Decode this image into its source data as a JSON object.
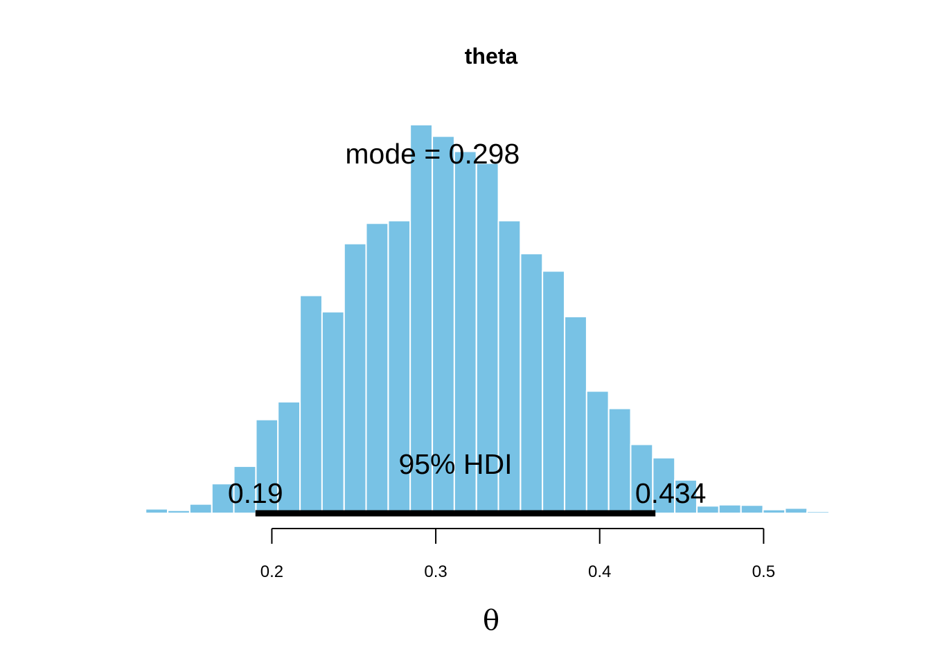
{
  "chart_data": {
    "type": "bar",
    "title": "theta",
    "xlabel": "θ",
    "ylabel": "",
    "xlim": [
      0.1153,
      0.5514
    ],
    "x_ticks": [
      "0.2",
      "0.3",
      "0.4",
      "0.5"
    ],
    "x_tick_values": [
      0.2,
      0.3,
      0.4,
      0.5
    ],
    "bin_width": 0.01345,
    "bin_starts": [
      0.123,
      0.1365,
      0.1499,
      0.1634,
      0.1768,
      0.1903,
      0.2037,
      0.2172,
      0.2306,
      0.2441,
      0.2575,
      0.271,
      0.2844,
      0.2979,
      0.3113,
      0.3248,
      0.3382,
      0.3517,
      0.3651,
      0.3786,
      0.392,
      0.4055,
      0.4189,
      0.4324,
      0.4458,
      0.4593,
      0.4727,
      0.4862,
      0.4996,
      0.5131,
      0.5265,
      0.54
    ],
    "values": [
      12,
      8,
      25,
      80,
      127,
      253,
      301,
      588,
      544,
      728,
      783,
      790,
      1049,
      1018,
      977,
      945,
      790,
      701,
      654,
      531,
      330,
      283,
      186,
      150,
      90,
      20,
      23,
      22,
      10,
      14,
      5,
      0
    ],
    "ylim": [
      0,
      1049
    ],
    "color": "#78C2E5",
    "bar_border": "#ffffff",
    "mode_label": "mode = 0.298",
    "hdi_label": "95% HDI",
    "hdi": [
      0.19,
      0.434
    ],
    "hdi_low_label": "0.19",
    "hdi_high_label": "0.434",
    "hdi_color": "#000000"
  }
}
